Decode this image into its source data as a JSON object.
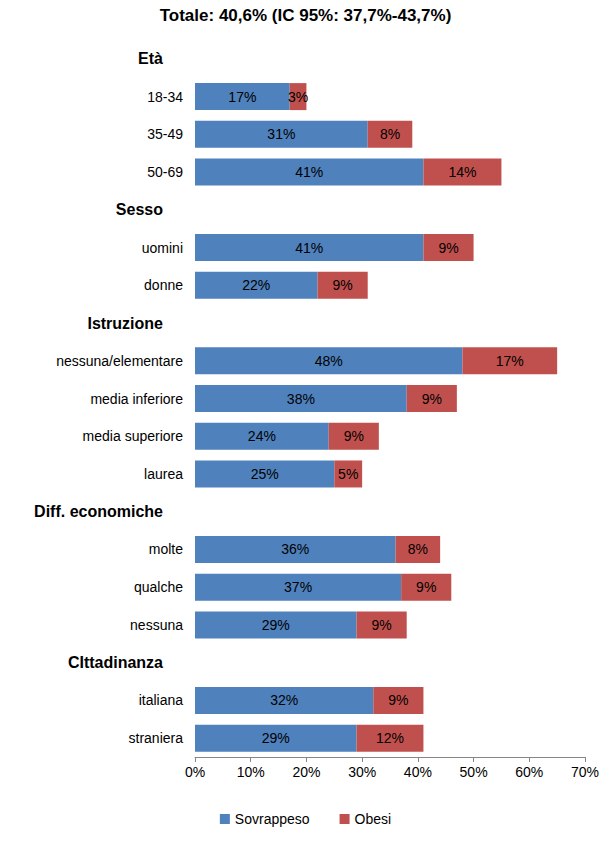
{
  "chart_data": {
    "type": "bar",
    "title": "Totale: 40,6% (IC 95%: 37,7%-43,7%)",
    "orientation": "horizontal",
    "stacked": true,
    "data_labels": true,
    "grid": false,
    "legend": "bottom",
    "categories": [
      "Età",
      "18-34",
      "35-49",
      "50-69",
      "Sesso",
      "uomini",
      "donne",
      "Istruzione",
      "nessuna/elementare",
      "media inferiore",
      "media superiore",
      "laurea",
      "Diff. economiche",
      "molte",
      "qualche",
      "nessuna",
      "CIttadinanza",
      "italiana",
      "straniera"
    ],
    "series": [
      {
        "name": "Sovrappeso",
        "color": "#4f81bd",
        "values": [
          null,
          17,
          31,
          41,
          null,
          41,
          22,
          null,
          48,
          38,
          24,
          25,
          null,
          36,
          37,
          29,
          null,
          32,
          29
        ],
        "value_labels": [
          null,
          "17%",
          "31%",
          "41%",
          null,
          "41%",
          "22%",
          null,
          "48%",
          "38%",
          "24%",
          "25%",
          null,
          "36%",
          "37%",
          "29%",
          null,
          "32%",
          "29%"
        ]
      },
      {
        "name": "Obesi",
        "color": "#c0504d",
        "values": [
          null,
          3,
          8,
          14,
          null,
          9,
          9,
          null,
          17,
          9,
          9,
          5,
          null,
          8,
          9,
          9,
          null,
          9,
          12
        ],
        "value_labels": [
          null,
          "3%",
          "8%",
          "14%",
          null,
          "9%",
          "9%",
          null,
          "17%",
          "9%",
          "9%",
          "5%",
          null,
          "8%",
          "9%",
          "9%",
          null,
          "9%",
          "12%"
        ]
      }
    ],
    "xlim": [
      0,
      70
    ],
    "xticks": [
      {
        "value": 0,
        "label": "0%"
      },
      {
        "value": 10,
        "label": "10%"
      },
      {
        "value": 20,
        "label": "20%"
      },
      {
        "value": 30,
        "label": "30%"
      },
      {
        "value": 40,
        "label": "40%"
      },
      {
        "value": 50,
        "label": "50%"
      },
      {
        "value": 60,
        "label": "60%"
      },
      {
        "value": 70,
        "label": "70%"
      }
    ]
  }
}
